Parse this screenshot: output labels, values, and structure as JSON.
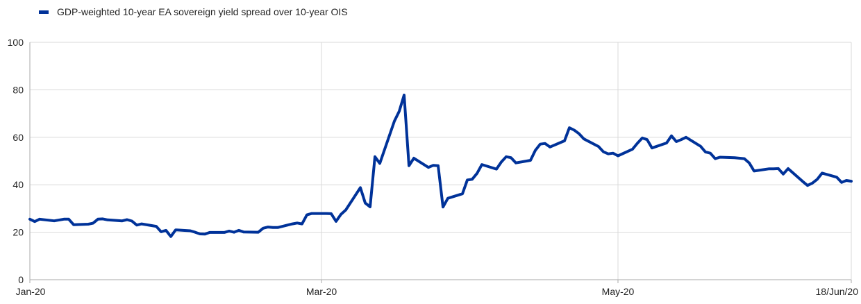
{
  "chart_data": {
    "type": "line",
    "title": "",
    "xlabel": "",
    "ylabel": "",
    "ylim": [
      0,
      100
    ],
    "yticks": [
      0,
      20,
      40,
      60,
      80,
      100
    ],
    "xlim": [
      "2020-01-01",
      "2020-06-18"
    ],
    "xticks": [
      {
        "date": "2020-01-01",
        "label": "Jan-20"
      },
      {
        "date": "2020-03-01",
        "label": "Mar-20"
      },
      {
        "date": "2020-05-01",
        "label": "May-20"
      },
      {
        "date": "2020-06-18",
        "label": "18/Jun/20"
      }
    ],
    "grid": true,
    "legend_position": "top-left",
    "colors": {
      "series": "#003299",
      "grid": "#d9d9d9",
      "axis": "#aaaaaa"
    },
    "series": [
      {
        "name": "GDP-weighted 10-year EA sovereign yield spread over 10-year OIS",
        "points": [
          [
            "2020-01-01",
            25.5
          ],
          [
            "2020-01-02",
            24.5
          ],
          [
            "2020-01-03",
            25.5
          ],
          [
            "2020-01-06",
            24.8
          ],
          [
            "2020-01-08",
            25.5
          ],
          [
            "2020-01-09",
            25.5
          ],
          [
            "2020-01-10",
            23.2
          ],
          [
            "2020-01-13",
            23.4
          ],
          [
            "2020-01-14",
            23.8
          ],
          [
            "2020-01-15",
            25.5
          ],
          [
            "2020-01-16",
            25.6
          ],
          [
            "2020-01-17",
            25.2
          ],
          [
            "2020-01-20",
            24.8
          ],
          [
            "2020-01-21",
            25.3
          ],
          [
            "2020-01-22",
            24.7
          ],
          [
            "2020-01-23",
            23.0
          ],
          [
            "2020-01-24",
            23.5
          ],
          [
            "2020-01-27",
            22.5
          ],
          [
            "2020-01-28",
            20.2
          ],
          [
            "2020-01-29",
            20.8
          ],
          [
            "2020-01-30",
            18.2
          ],
          [
            "2020-01-31",
            21.0
          ],
          [
            "2020-02-03",
            20.6
          ],
          [
            "2020-02-04",
            20.0
          ],
          [
            "2020-02-05",
            19.3
          ],
          [
            "2020-02-06",
            19.2
          ],
          [
            "2020-02-07",
            19.9
          ],
          [
            "2020-02-10",
            19.9
          ],
          [
            "2020-02-11",
            20.5
          ],
          [
            "2020-02-12",
            20.0
          ],
          [
            "2020-02-13",
            20.8
          ],
          [
            "2020-02-14",
            20.1
          ],
          [
            "2020-02-17",
            20.0
          ],
          [
            "2020-02-18",
            21.7
          ],
          [
            "2020-02-19",
            22.2
          ],
          [
            "2020-02-20",
            22.0
          ],
          [
            "2020-02-21",
            22.0
          ],
          [
            "2020-02-24",
            23.5
          ],
          [
            "2020-02-25",
            23.9
          ],
          [
            "2020-02-26",
            23.5
          ],
          [
            "2020-02-27",
            27.3
          ],
          [
            "2020-02-28",
            27.9
          ],
          [
            "2020-03-02",
            27.9
          ],
          [
            "2020-03-03",
            27.8
          ],
          [
            "2020-03-04",
            24.6
          ],
          [
            "2020-03-05",
            27.5
          ],
          [
            "2020-03-06",
            29.4
          ],
          [
            "2020-03-09",
            38.8
          ],
          [
            "2020-03-10",
            32.3
          ],
          [
            "2020-03-11",
            30.7
          ],
          [
            "2020-03-12",
            51.8
          ],
          [
            "2020-03-13",
            49.0
          ],
          [
            "2020-03-16",
            66.8
          ],
          [
            "2020-03-17",
            71.0
          ],
          [
            "2020-03-18",
            77.8
          ],
          [
            "2020-03-19",
            48.0
          ],
          [
            "2020-03-20",
            51.2
          ],
          [
            "2020-03-23",
            47.3
          ],
          [
            "2020-03-24",
            48.2
          ],
          [
            "2020-03-25",
            48.0
          ],
          [
            "2020-03-26",
            30.6
          ],
          [
            "2020-03-27",
            34.3
          ],
          [
            "2020-03-30",
            36.2
          ],
          [
            "2020-03-31",
            42.0
          ],
          [
            "2020-04-01",
            42.3
          ],
          [
            "2020-04-02",
            44.8
          ],
          [
            "2020-04-03",
            48.5
          ],
          [
            "2020-04-06",
            46.6
          ],
          [
            "2020-04-07",
            49.6
          ],
          [
            "2020-04-08",
            51.8
          ],
          [
            "2020-04-09",
            51.4
          ],
          [
            "2020-04-10",
            49.2
          ],
          [
            "2020-04-13",
            50.3
          ],
          [
            "2020-04-14",
            54.5
          ],
          [
            "2020-04-15",
            57.1
          ],
          [
            "2020-04-16",
            57.4
          ],
          [
            "2020-04-17",
            55.9
          ],
          [
            "2020-04-20",
            58.5
          ],
          [
            "2020-04-21",
            64.0
          ],
          [
            "2020-04-22",
            63.0
          ],
          [
            "2020-04-23",
            61.5
          ],
          [
            "2020-04-24",
            59.3
          ],
          [
            "2020-04-27",
            56.1
          ],
          [
            "2020-04-28",
            53.9
          ],
          [
            "2020-04-29",
            53.0
          ],
          [
            "2020-04-30",
            53.3
          ],
          [
            "2020-05-01",
            52.2
          ],
          [
            "2020-05-04",
            55.0
          ],
          [
            "2020-05-05",
            57.5
          ],
          [
            "2020-05-06",
            59.7
          ],
          [
            "2020-05-07",
            59.0
          ],
          [
            "2020-05-08",
            55.5
          ],
          [
            "2020-05-11",
            57.6
          ],
          [
            "2020-05-12",
            60.6
          ],
          [
            "2020-05-13",
            58.2
          ],
          [
            "2020-05-14",
            59.0
          ],
          [
            "2020-05-15",
            60.0
          ],
          [
            "2020-05-18",
            56.2
          ],
          [
            "2020-05-19",
            53.8
          ],
          [
            "2020-05-20",
            53.3
          ],
          [
            "2020-05-21",
            51.0
          ],
          [
            "2020-05-22",
            51.6
          ],
          [
            "2020-05-25",
            51.4
          ],
          [
            "2020-05-27",
            51.0
          ],
          [
            "2020-05-28",
            49.2
          ],
          [
            "2020-05-29",
            45.8
          ],
          [
            "2020-06-01",
            46.7
          ],
          [
            "2020-06-02",
            46.7
          ],
          [
            "2020-06-03",
            46.8
          ],
          [
            "2020-06-04",
            44.5
          ],
          [
            "2020-06-05",
            46.8
          ],
          [
            "2020-06-08",
            41.4
          ],
          [
            "2020-06-09",
            39.7
          ],
          [
            "2020-06-10",
            40.7
          ],
          [
            "2020-06-11",
            42.3
          ],
          [
            "2020-06-12",
            44.9
          ],
          [
            "2020-06-15",
            43.2
          ],
          [
            "2020-06-16",
            41.0
          ],
          [
            "2020-06-17",
            41.8
          ],
          [
            "2020-06-18",
            41.5
          ]
        ]
      }
    ]
  }
}
